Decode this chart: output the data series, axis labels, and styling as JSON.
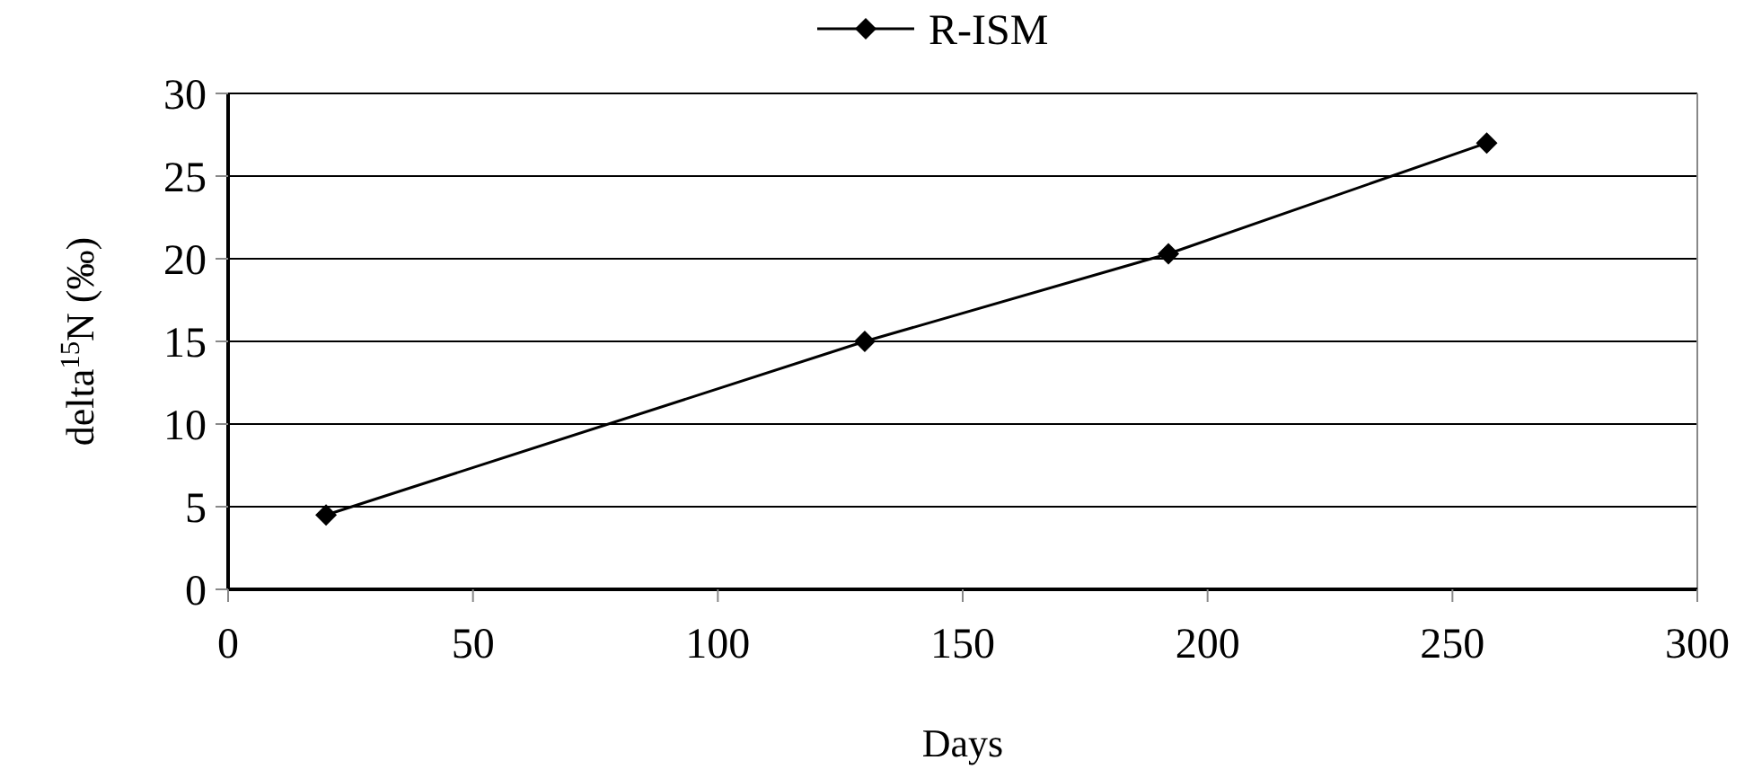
{
  "chart_data": {
    "type": "line",
    "xlabel": "Days",
    "ylabel": "delta$^{15}$N (‰)",
    "x": [
      20,
      130,
      192,
      257
    ],
    "series": [
      {
        "name": "R-ISM",
        "color": "#000000",
        "values": [
          4.5,
          15,
          20.3,
          27
        ]
      }
    ],
    "xlim": [
      0,
      300
    ],
    "xticks": [
      0,
      50,
      100,
      150,
      200,
      250,
      300
    ],
    "ylim": [
      0,
      30
    ],
    "yticks": [
      0,
      5,
      10,
      15,
      20,
      25,
      30
    ],
    "grid": "y",
    "legend": "top",
    "marker": "diamond",
    "line_style": "solid"
  }
}
